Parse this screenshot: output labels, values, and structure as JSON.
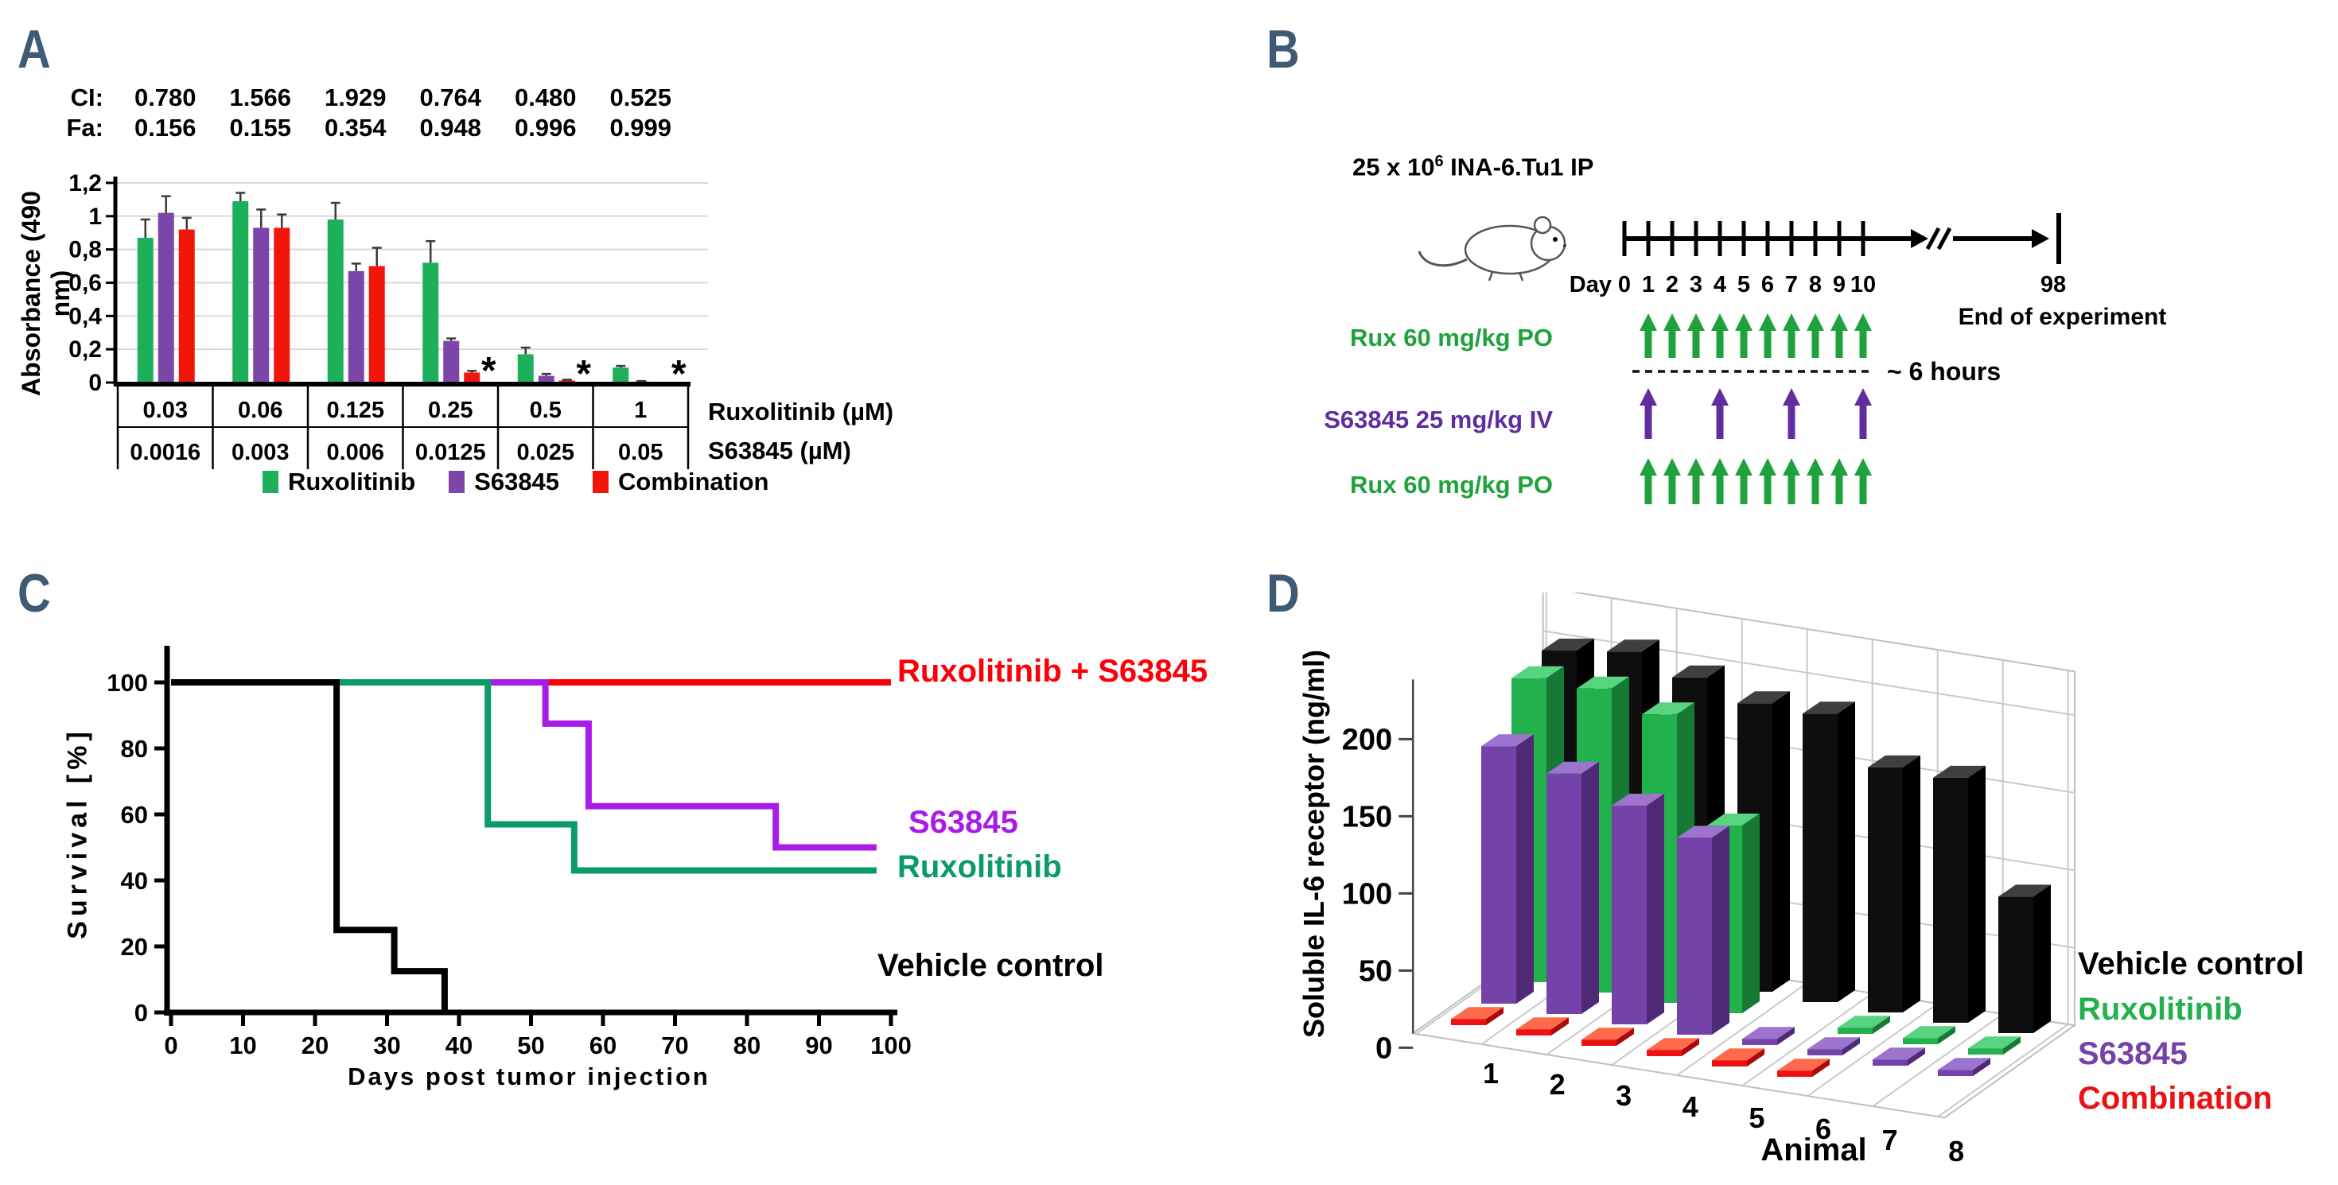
{
  "panels": {
    "a": {
      "letter": "A",
      "ci_label": "CI:",
      "fa_label": "Fa:",
      "ci_values": [
        "0.780",
        "1.566",
        "1.929",
        "0.764",
        "0.480",
        "0.525"
      ],
      "fa_values": [
        "0.156",
        "0.155",
        "0.354",
        "0.948",
        "0.996",
        "0.999"
      ],
      "ylabel": "Absorbance (490 nm)",
      "ytick_labels": [
        "0",
        "0,2",
        "0,4",
        "0,6",
        "0,8",
        "1",
        "1,2"
      ],
      "row1_label": "Ruxolitinib (µM)",
      "row2_label": "S63845 (µM)",
      "star": "*"
    },
    "b": {
      "letter": "B",
      "cells_base": "25 x 10",
      "cells_exp": "6",
      "cells_rest": " INA-6.Tu1 IP",
      "day_label": "Day",
      "end_day_label": "98",
      "end_note": "End of experiment"
    },
    "c": {
      "letter": "C"
    },
    "d": {
      "letter": "D"
    }
  },
  "chart_data": [
    {
      "id": "A",
      "type": "bar",
      "ylabel": "Absorbance (490 nm)",
      "ylim": [
        0,
        1.2
      ],
      "yticks": [
        0,
        0.2,
        0.4,
        0.6,
        0.8,
        1.0,
        1.2
      ],
      "categories_ruxolitinib_uM": [
        "0.03",
        "0.06",
        "0.125",
        "0.25",
        "0.5",
        "1"
      ],
      "categories_s63845_uM": [
        "0.0016",
        "0.003",
        "0.006",
        "0.0125",
        "0.025",
        "0.05"
      ],
      "ci_values": [
        0.78,
        1.566,
        1.929,
        0.764,
        0.48,
        0.525
      ],
      "fa_values": [
        0.156,
        0.155,
        0.354,
        0.948,
        0.996,
        0.999
      ],
      "series": [
        {
          "name": "Ruxolitinib",
          "color": "#1CB05B",
          "values": [
            0.87,
            1.09,
            0.98,
            0.72,
            0.17,
            0.09
          ],
          "errors": [
            0.11,
            0.05,
            0.1,
            0.13,
            0.04,
            0.01
          ]
        },
        {
          "name": "S63845",
          "color": "#7B46A8",
          "values": [
            1.02,
            0.93,
            0.67,
            0.25,
            0.04,
            0.006
          ],
          "errors": [
            0.1,
            0.11,
            0.045,
            0.015,
            0.012,
            0.003
          ]
        },
        {
          "name": "Combination",
          "color": "#F2150A",
          "values": [
            0.92,
            0.93,
            0.7,
            0.06,
            0.012,
            0.003
          ],
          "errors": [
            0.07,
            0.08,
            0.11,
            0.01,
            0.005,
            0
          ]
        }
      ],
      "significance_star_groups": [
        3,
        4,
        5
      ],
      "grid": true,
      "legend_position": "bottom"
    },
    {
      "id": "B",
      "type": "timeline",
      "cells_injected": "25 x 10^6 INA-6.Tu1 IP",
      "days": [
        0,
        1,
        2,
        3,
        4,
        5,
        6,
        7,
        8,
        9,
        10
      ],
      "end_day": 98,
      "end_note": "End of experiment",
      "gap_note": "~ 6 hours",
      "rows": [
        {
          "label": "Rux 60 mg/kg PO",
          "color": "#1FA23C",
          "arrow_days": [
            1,
            2,
            3,
            4,
            5,
            6,
            7,
            8,
            9,
            10
          ]
        },
        {
          "label": "S63845 25 mg/kg IV",
          "color": "#5F2DA0",
          "arrow_days": [
            1,
            4,
            7,
            10
          ]
        },
        {
          "label": "Rux 60 mg/kg PO",
          "color": "#1FA23C",
          "arrow_days": [
            1,
            2,
            3,
            4,
            5,
            6,
            7,
            8,
            9,
            10
          ]
        }
      ]
    },
    {
      "id": "C",
      "type": "line",
      "subtype": "kaplan-meier-step",
      "xlabel": "Days post tumor injection",
      "ylabel": "Survival [%]",
      "xlim": [
        0,
        100
      ],
      "ylim": [
        0,
        100
      ],
      "xticks": [
        0,
        10,
        20,
        30,
        40,
        50,
        60,
        70,
        80,
        90,
        100
      ],
      "yticks": [
        0,
        20,
        40,
        60,
        80,
        100
      ],
      "grid": false,
      "series": [
        {
          "name": "Vehicle control",
          "color": "#000000",
          "points": [
            [
              0,
              100
            ],
            [
              23,
              100
            ],
            [
              23,
              25
            ],
            [
              31,
              25
            ],
            [
              31,
              12.5
            ],
            [
              38,
              12.5
            ],
            [
              38,
              0
            ]
          ]
        },
        {
          "name": "Ruxolitinib",
          "color": "#0B9B66",
          "points": [
            [
              0,
              100
            ],
            [
              44,
              100
            ],
            [
              44,
              57
            ],
            [
              56,
              57
            ],
            [
              56,
              43
            ],
            [
              98,
              43
            ]
          ]
        },
        {
          "name": "S63845",
          "color": "#A81CE8",
          "points": [
            [
              0,
              100
            ],
            [
              52,
              100
            ],
            [
              52,
              87.5
            ],
            [
              58,
              87.5
            ],
            [
              58,
              62.5
            ],
            [
              84,
              62.5
            ],
            [
              84,
              50
            ],
            [
              98,
              50
            ]
          ]
        },
        {
          "name": "Ruxolitinib + S63845",
          "color": "#FB0007",
          "points": [
            [
              0,
              100
            ],
            [
              100,
              100
            ]
          ]
        }
      ]
    },
    {
      "id": "D",
      "type": "bar3d",
      "xlabel": "Animal",
      "ylabel": "Soluble IL-6 receptor (ng/ml)",
      "categories": [
        "1",
        "2",
        "3",
        "4",
        "5",
        "6",
        "7",
        "8"
      ],
      "ylim": [
        0,
        200
      ],
      "yticks": [
        0,
        50,
        100,
        150,
        200
      ],
      "series": [
        {
          "name": "Combination",
          "depth": 0,
          "color": "#EE1111",
          "color_top": "#FF6A4D",
          "color_side": "#A90B0B",
          "values": [
            4,
            4,
            4,
            4,
            4,
            4,
            0,
            0
          ]
        },
        {
          "name": "S63845",
          "depth": 1,
          "color": "#7443A9",
          "color_top": "#9C74CE",
          "color_side": "#4F2B77",
          "values": [
            166,
            155,
            141,
            127,
            4,
            4,
            4,
            4
          ]
        },
        {
          "name": "Ruxolitinib",
          "depth": 2,
          "color": "#23B14D",
          "color_top": "#58D37F",
          "color_side": "#167A34",
          "values": [
            196,
            196,
            186,
            121,
            0,
            4,
            4,
            4
          ]
        },
        {
          "name": "Vehicle control",
          "depth": 3,
          "color": "#0E0E0E",
          "color_top": "#3F3F3F",
          "color_side": "#000000",
          "values": [
            200,
            206,
            196,
            186,
            186,
            158,
            158,
            88
          ]
        }
      ],
      "legend": [
        {
          "label": "Vehicle control",
          "color": "#000000"
        },
        {
          "label": "Ruxolitinib",
          "color": "#22B14C"
        },
        {
          "label": "S63845",
          "color": "#7442A8"
        },
        {
          "label": "Combination",
          "color": "#EE1111"
        }
      ]
    }
  ]
}
